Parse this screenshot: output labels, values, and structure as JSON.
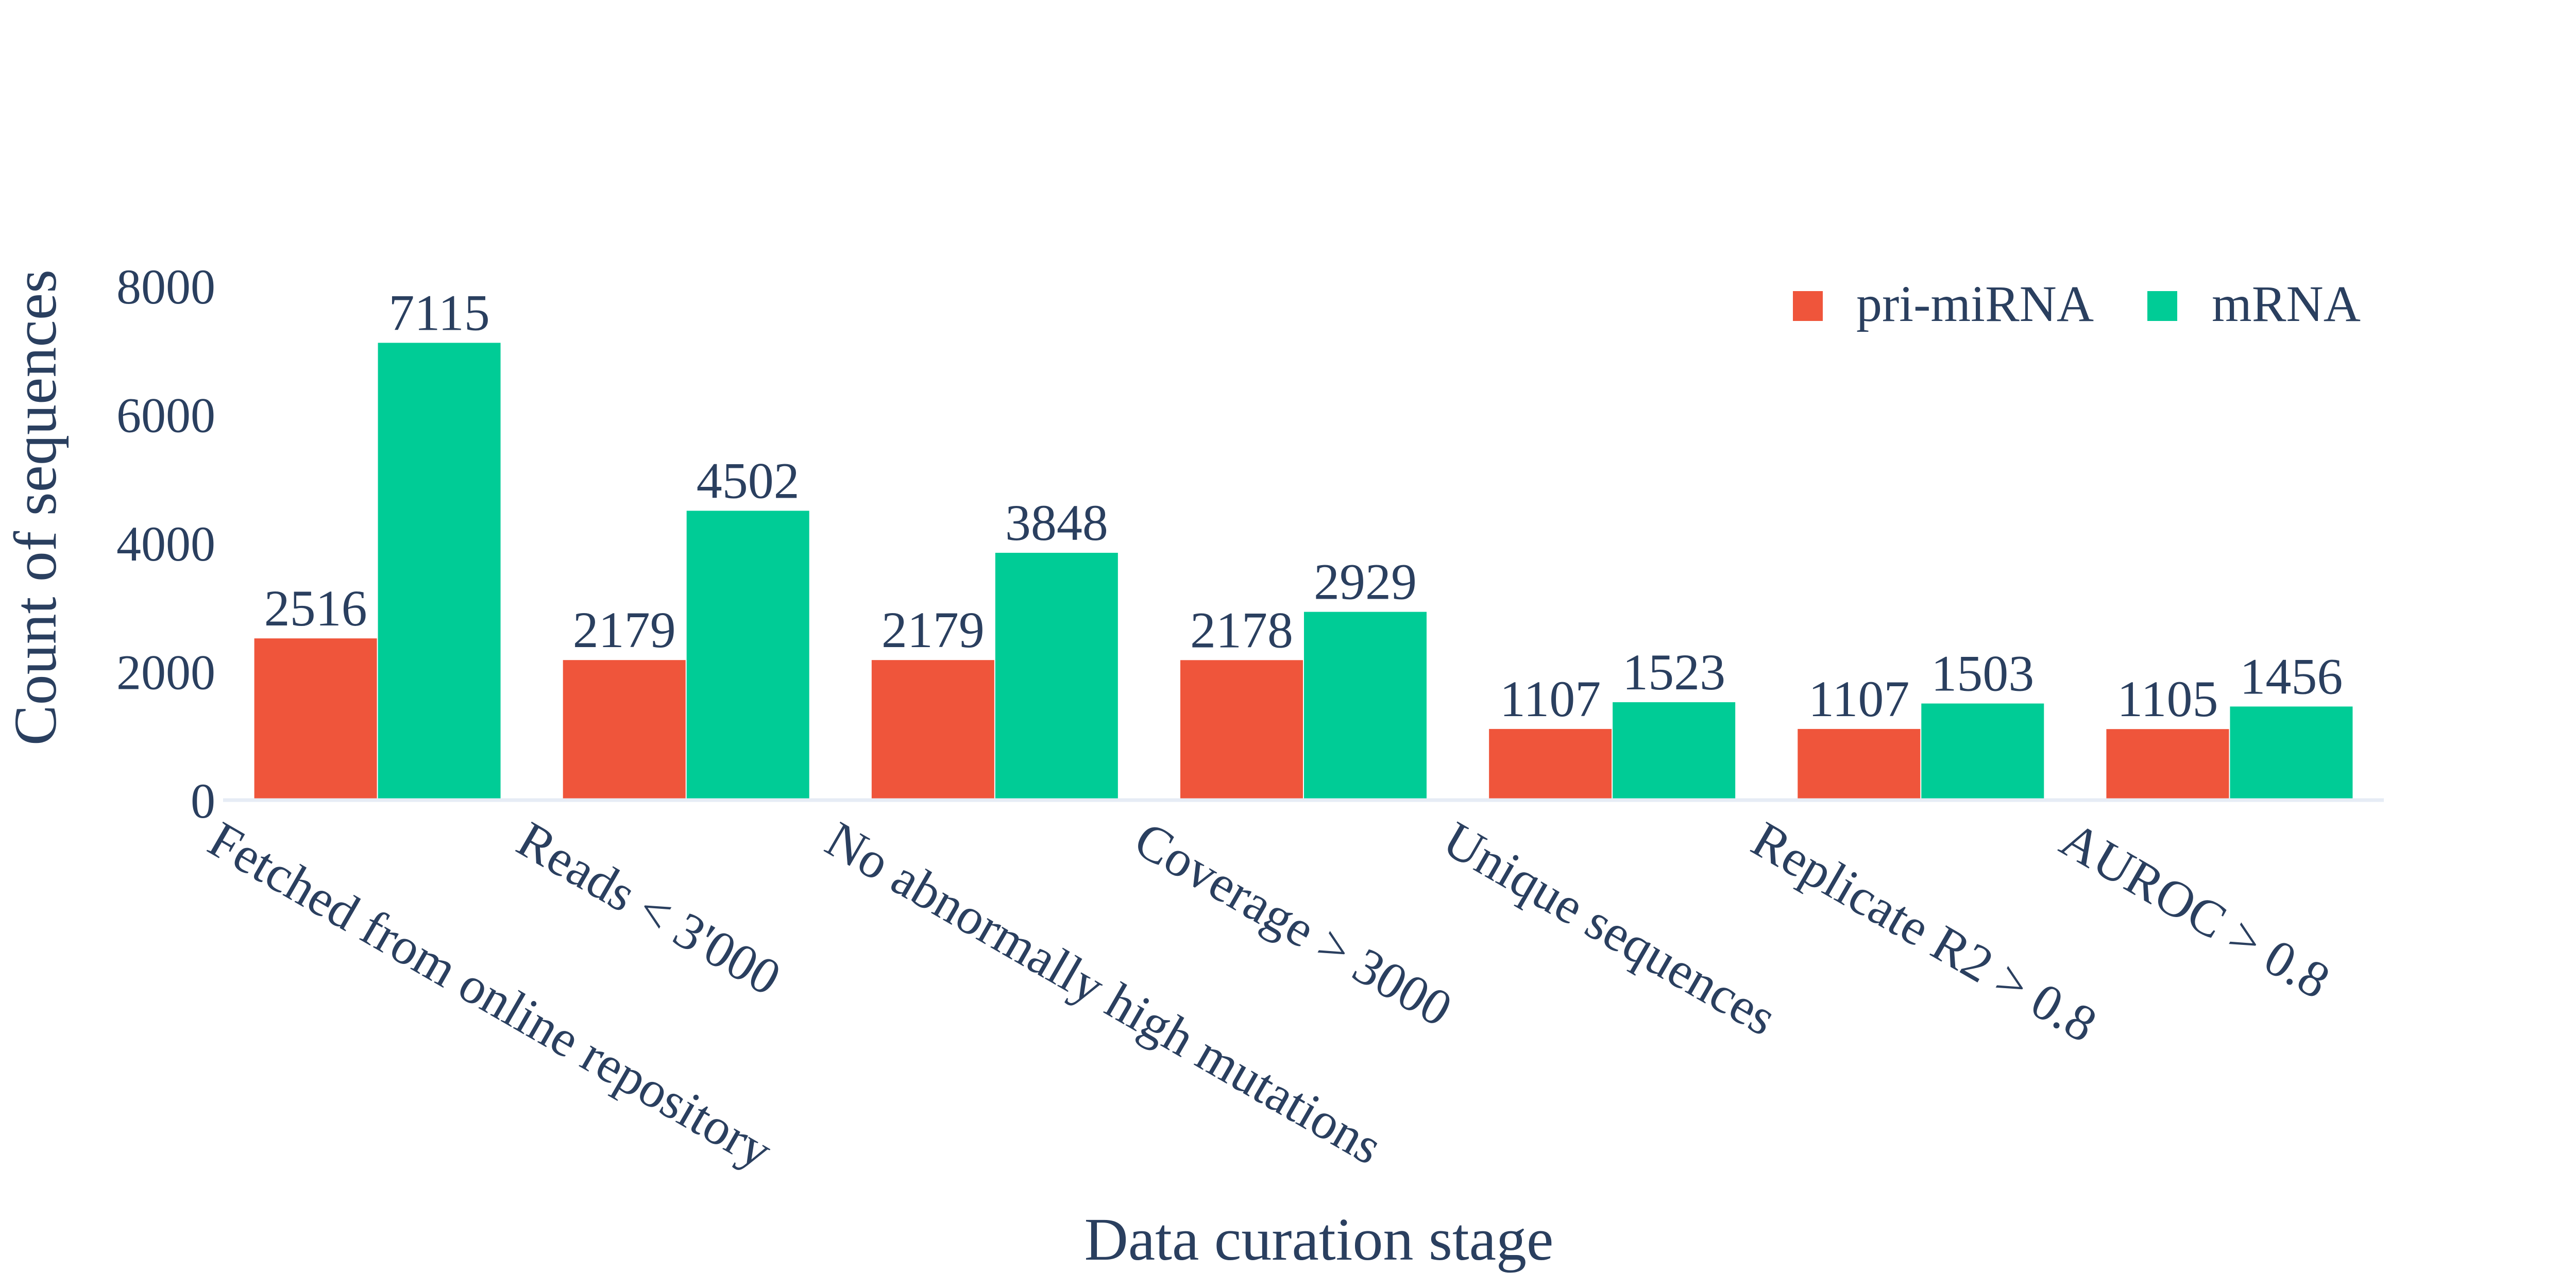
{
  "chart_data": {
    "type": "bar",
    "title": "",
    "xlabel": "Data curation stage",
    "ylabel": "Count of sequences",
    "categories": [
      "Fetched from online repository",
      "Reads < 3'000",
      "No abnormally high mutations",
      "Coverage > 3000",
      "Unique sequences",
      "Replicate R2 > 0.8",
      "AUROC > 0.8"
    ],
    "series": [
      {
        "name": "pri-miRNA",
        "color": "#EF553B",
        "values": [
          2516,
          2179,
          2179,
          2178,
          1107,
          1107,
          1105
        ]
      },
      {
        "name": "mRNA",
        "color": "#00CC96",
        "values": [
          7115,
          4502,
          3848,
          2929,
          1523,
          1503,
          1456
        ]
      }
    ],
    "ylim": [
      0,
      8000
    ],
    "yticks": [
      "0",
      "2000",
      "4000",
      "6000",
      "8000"
    ],
    "grid": false,
    "legend": "top-right"
  }
}
